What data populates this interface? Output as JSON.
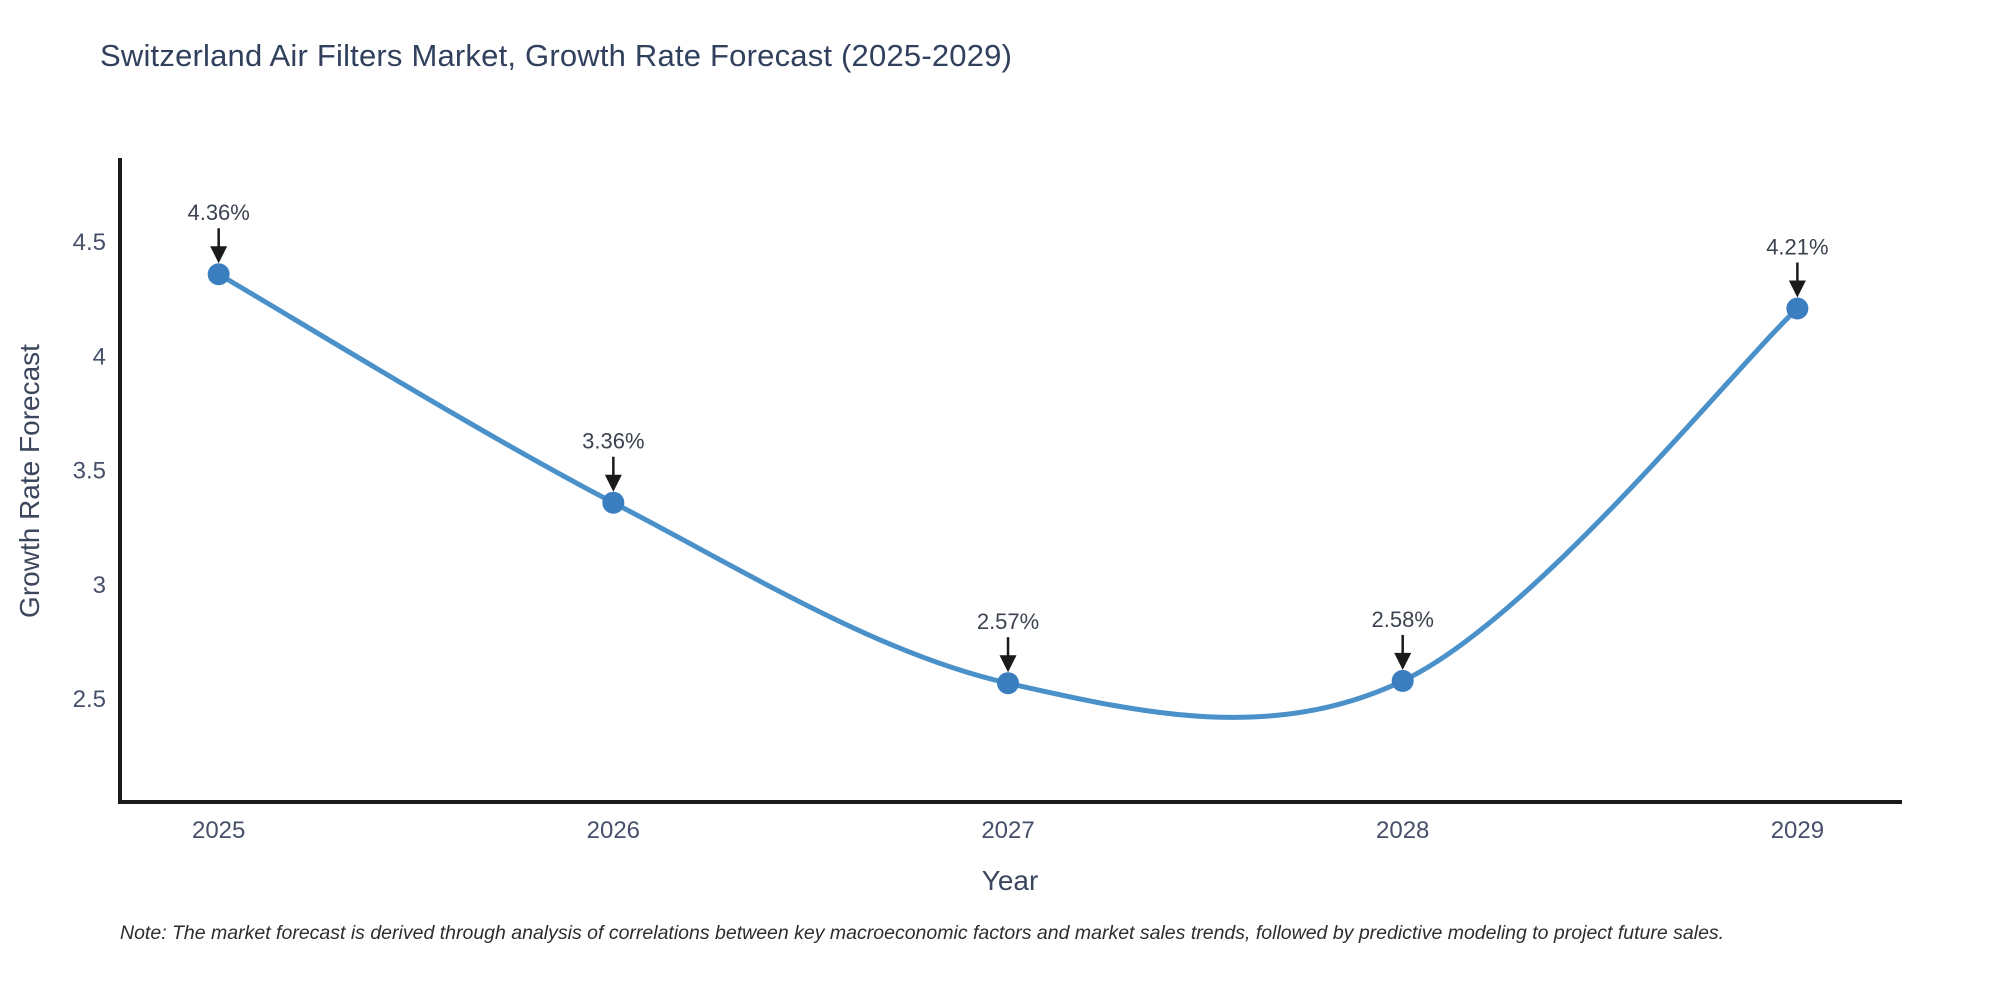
{
  "chart_data": {
    "type": "line",
    "title": "Switzerland Air Filters Market, Growth Rate Forecast (2025-2029)",
    "xlabel": "Year",
    "ylabel": "Growth Rate Forecast",
    "x": [
      2025,
      2026,
      2027,
      2028,
      2029
    ],
    "series": [
      {
        "name": "Growth Rate Forecast",
        "values": [
          4.36,
          3.36,
          2.57,
          2.58,
          4.21
        ],
        "point_labels": [
          "4.36%",
          "3.36%",
          "2.57%",
          "2.58%",
          "4.21%"
        ]
      }
    ],
    "x_tick_labels": [
      "2025",
      "2026",
      "2027",
      "2028",
      "2029"
    ],
    "y_ticks": [
      2.5,
      3,
      3.5,
      4,
      4.5
    ],
    "y_tick_labels": [
      "2.5",
      "3",
      "3.5",
      "4",
      "4.5"
    ],
    "xlim": [
      2024.75,
      2029.26
    ],
    "ylim": [
      2.05,
      4.86
    ],
    "line_shape": "spline",
    "grid": false,
    "legend_position": "none",
    "colors": {
      "line": "#4a90c9",
      "marker": "#3a7ebf",
      "axis": "#1a1a1a",
      "annotation_arrow": "#1a1a1a"
    },
    "note": "Note: The market forecast is derived through analysis of correlations between key macroeconomic factors and market sales trends, followed by predictive modeling to project future sales."
  }
}
